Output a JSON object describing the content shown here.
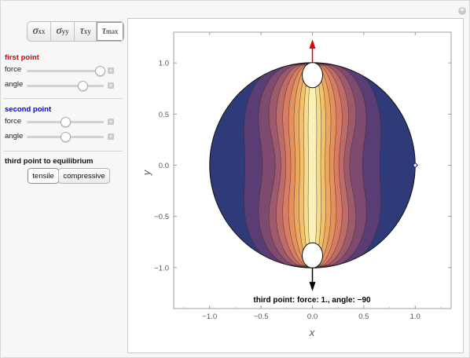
{
  "controls": {
    "stress_tabs": [
      {
        "base": "σ",
        "sub": "xx"
      },
      {
        "base": "σ",
        "sub": "yy"
      },
      {
        "base": "τ",
        "sub": "xy"
      },
      {
        "base": "τ",
        "sub": "max"
      }
    ],
    "selected_tab": "τmax",
    "first_point": {
      "title": "first point",
      "color": "#ff0000",
      "force_label": "force",
      "angle_label": "angle",
      "force_level": 0.95,
      "angle_level": 0.72
    },
    "second_point": {
      "title": "second point",
      "color": "#0000ff",
      "force_label": "force",
      "angle_label": "angle",
      "force_level": 0.5,
      "angle_level": 0.5
    },
    "third_point": {
      "title": "third point to equilibrium",
      "options": [
        "tensile",
        "compressive"
      ],
      "selected": "tensile"
    },
    "plus_glyph": "+"
  },
  "plot": {
    "xlabel": "x",
    "ylabel": "y",
    "xticks": [
      "−1.0",
      "−0.5",
      "0.0",
      "0.5",
      "1.0"
    ],
    "yticks": [
      "1.0",
      "0.5",
      "0.0",
      "−0.5",
      "−1.0"
    ],
    "annotation": "third point: force: 1., angle: −90",
    "xlim": [
      -1.35,
      1.35
    ],
    "ylim": [
      -1.4,
      1.3
    ],
    "contour_colors": [
      "#2f3a78",
      "#5a3d75",
      "#7e4a6f",
      "#9d5a6c",
      "#be6c69",
      "#d77d63",
      "#e4915e",
      "#eda860",
      "#f2c26a",
      "#f6dc86",
      "#fbf1b8"
    ],
    "arrow_colors": {
      "top": "#e00000",
      "bottom": "#000000"
    }
  }
}
